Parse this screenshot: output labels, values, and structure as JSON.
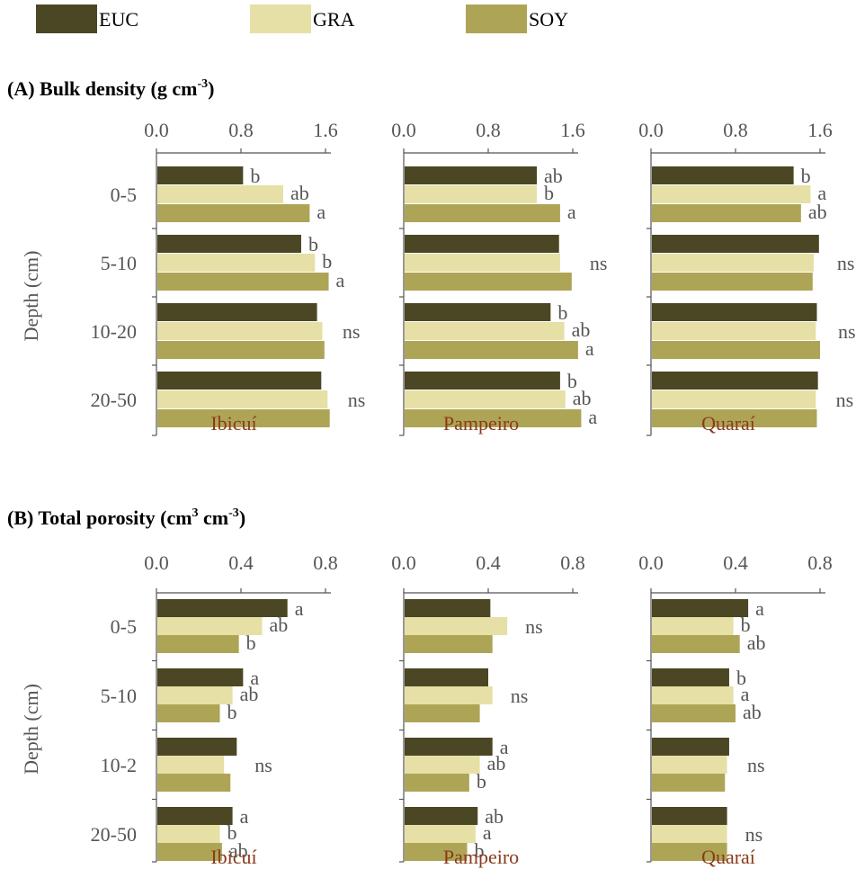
{
  "legend": [
    {
      "name": "EUC",
      "color": "#4b4624"
    },
    {
      "name": "GRA",
      "color": "#e6e0a6"
    },
    {
      "name": "SOY",
      "color": "#aea456"
    }
  ],
  "colors": {
    "axis": "#555555",
    "text": "#555555",
    "site": "#8b3a1a",
    "title": "#000000"
  },
  "chart_data": [
    {
      "type": "bar",
      "orientation": "horizontal",
      "title": "(A) Bulk density (g cm",
      "title_sup": "-3",
      "title_end": ")",
      "ylabel": "Depth (cm)",
      "categories": [
        "0-5",
        "5-10",
        "10-20",
        "20-50"
      ],
      "xlim": [
        0,
        1.6
      ],
      "xticks": [
        "0.0",
        "0.8",
        "1.6"
      ],
      "panels": [
        {
          "site": "Ibicuí",
          "series": [
            {
              "name": "EUC",
              "values": [
                0.82,
                1.37,
                1.52,
                1.56
              ]
            },
            {
              "name": "GRA",
              "values": [
                1.2,
                1.5,
                1.57,
                1.62
              ]
            },
            {
              "name": "SOY",
              "values": [
                1.45,
                1.63,
                1.59,
                1.64
              ]
            }
          ],
          "sig": [
            [
              "b",
              "ab",
              "a"
            ],
            [
              "b",
              "b",
              "a"
            ],
            [
              "ns"
            ],
            [
              "ns"
            ]
          ]
        },
        {
          "site": "Pampeiro",
          "series": [
            {
              "name": "EUC",
              "values": [
                1.26,
                1.47,
                1.39,
                1.48
              ]
            },
            {
              "name": "GRA",
              "values": [
                1.26,
                1.48,
                1.52,
                1.53
              ]
            },
            {
              "name": "SOY",
              "values": [
                1.48,
                1.59,
                1.65,
                1.68
              ]
            }
          ],
          "sig": [
            [
              "ab",
              "b",
              "a"
            ],
            [
              "ns"
            ],
            [
              "b",
              "ab",
              "a"
            ],
            [
              "b",
              "ab",
              "a"
            ]
          ]
        },
        {
          "site": "Quaraí",
          "series": [
            {
              "name": "EUC",
              "values": [
                1.35,
                1.59,
                1.57,
                1.58
              ]
            },
            {
              "name": "GRA",
              "values": [
                1.51,
                1.54,
                1.56,
                1.56
              ]
            },
            {
              "name": "SOY",
              "values": [
                1.42,
                1.53,
                1.6,
                1.57
              ]
            }
          ],
          "sig": [
            [
              "b",
              "a",
              "ab"
            ],
            [
              "ns"
            ],
            [
              "ns"
            ],
            [
              "ns"
            ]
          ]
        }
      ]
    },
    {
      "type": "bar",
      "orientation": "horizontal",
      "title": "(B) Total porosity (cm",
      "title_sup": "3",
      "title_mid": " cm",
      "title_sup2": "-3",
      "title_end": ")",
      "ylabel": "Depth (cm)",
      "categories": [
        "0-5",
        "5-10",
        "10-2",
        "20-50"
      ],
      "xlim": [
        0,
        0.8
      ],
      "xticks": [
        "0.0",
        "0.4",
        "0.8"
      ],
      "panels": [
        {
          "site": "Ibicuí",
          "series": [
            {
              "name": "EUC",
              "values": [
                0.62,
                0.41,
                0.38,
                0.36
              ]
            },
            {
              "name": "GRA",
              "values": [
                0.5,
                0.36,
                0.32,
                0.3
              ]
            },
            {
              "name": "SOY",
              "values": [
                0.39,
                0.3,
                0.35,
                0.31
              ]
            }
          ],
          "sig": [
            [
              "a",
              "ab",
              "b"
            ],
            [
              "a",
              "ab",
              "b"
            ],
            [
              "ns"
            ],
            [
              "a",
              "b",
              "ab"
            ]
          ]
        },
        {
          "site": "Pampeiro",
          "series": [
            {
              "name": "EUC",
              "values": [
                0.41,
                0.4,
                0.42,
                0.35
              ]
            },
            {
              "name": "GRA",
              "values": [
                0.49,
                0.42,
                0.36,
                0.34
              ]
            },
            {
              "name": "SOY",
              "values": [
                0.42,
                0.36,
                0.31,
                0.3
              ]
            }
          ],
          "sig": [
            [
              "ns"
            ],
            [
              "ns"
            ],
            [
              "a",
              "ab",
              "b"
            ],
            [
              "ab",
              "a",
              "b"
            ]
          ]
        },
        {
          "site": "Quaraí",
          "series": [
            {
              "name": "EUC",
              "values": [
                0.46,
                0.37,
                0.37,
                0.36
              ]
            },
            {
              "name": "GRA",
              "values": [
                0.39,
                0.39,
                0.36,
                0.36
              ]
            },
            {
              "name": "SOY",
              "values": [
                0.42,
                0.4,
                0.35,
                0.36
              ]
            }
          ],
          "sig": [
            [
              "a",
              "b",
              "ab"
            ],
            [
              "b",
              "a",
              "ab"
            ],
            [
              "ns"
            ],
            [
              "ns"
            ]
          ]
        }
      ]
    }
  ]
}
